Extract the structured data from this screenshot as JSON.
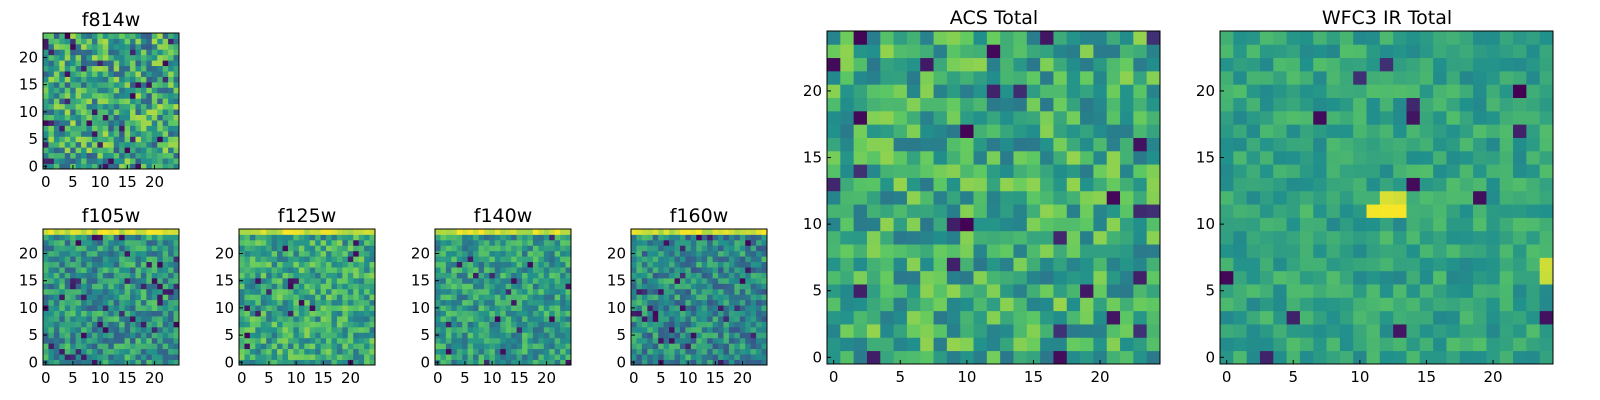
{
  "colors": {
    "cmap": [
      "#440154",
      "#3b528b",
      "#21918c",
      "#5ec962",
      "#fde725"
    ]
  },
  "chart_data": [
    {
      "id": "f814w",
      "type": "heatmap",
      "title": "f814w",
      "size": 25,
      "xticks": [
        0,
        5,
        10,
        15,
        20
      ],
      "yticks": [
        0,
        5,
        10,
        15,
        20
      ],
      "xlim": [
        -0.5,
        24.5
      ],
      "ylim": [
        -0.5,
        24.5
      ],
      "seed": 11,
      "mean": 0.58,
      "spread": 0.3,
      "lo_chance": 0.05,
      "hot_rows": [],
      "hot_spots": []
    },
    {
      "id": "f105w",
      "type": "heatmap",
      "title": "f105w",
      "size": 25,
      "xticks": [
        0,
        5,
        10,
        15,
        20
      ],
      "yticks": [
        0,
        5,
        10,
        15,
        20
      ],
      "xlim": [
        -0.5,
        24.5
      ],
      "ylim": [
        -0.5,
        24.5
      ],
      "seed": 23,
      "mean": 0.52,
      "spread": 0.22,
      "lo_chance": 0.05,
      "hot_rows": [
        24
      ],
      "hot_spots": []
    },
    {
      "id": "f125w",
      "type": "heatmap",
      "title": "f125w",
      "size": 25,
      "xticks": [
        0,
        5,
        10,
        15,
        20
      ],
      "yticks": [
        0,
        5,
        10,
        15,
        20
      ],
      "xlim": [
        -0.5,
        24.5
      ],
      "ylim": [
        -0.5,
        24.5
      ],
      "seed": 37,
      "mean": 0.6,
      "spread": 0.22,
      "lo_chance": 0.03,
      "hot_rows": [
        24
      ],
      "hot_spots": []
    },
    {
      "id": "f140w",
      "type": "heatmap",
      "title": "f140w",
      "size": 25,
      "xticks": [
        0,
        5,
        10,
        15,
        20
      ],
      "yticks": [
        0,
        5,
        10,
        15,
        20
      ],
      "xlim": [
        -0.5,
        24.5
      ],
      "ylim": [
        -0.5,
        24.5
      ],
      "seed": 41,
      "mean": 0.55,
      "spread": 0.2,
      "lo_chance": 0.03,
      "hot_rows": [
        24
      ],
      "hot_spots": []
    },
    {
      "id": "f160w",
      "type": "heatmap",
      "title": "f160w",
      "size": 25,
      "xticks": [
        0,
        5,
        10,
        15,
        20
      ],
      "yticks": [
        0,
        5,
        10,
        15,
        20
      ],
      "xlim": [
        -0.5,
        24.5
      ],
      "ylim": [
        -0.5,
        24.5
      ],
      "seed": 53,
      "mean": 0.48,
      "spread": 0.22,
      "lo_chance": 0.06,
      "hot_rows": [
        24
      ],
      "hot_spots": []
    },
    {
      "id": "acs",
      "type": "heatmap",
      "title": "ACS Total",
      "size": 25,
      "xticks": [
        0,
        5,
        10,
        15,
        20
      ],
      "yticks": [
        0,
        5,
        10,
        15,
        20
      ],
      "xlim": [
        -0.5,
        24.5
      ],
      "ylim": [
        -0.5,
        24.5
      ],
      "seed": 67,
      "mean": 0.62,
      "spread": 0.22,
      "lo_chance": 0.04,
      "hot_rows": [],
      "hot_spots": []
    },
    {
      "id": "wfc3",
      "type": "heatmap",
      "title": "WFC3 IR Total",
      "size": 25,
      "xticks": [
        0,
        5,
        10,
        15,
        20
      ],
      "yticks": [
        0,
        5,
        10,
        15,
        20
      ],
      "xlim": [
        -0.5,
        24.5
      ],
      "ylim": [
        -0.5,
        24.5
      ],
      "seed": 79,
      "mean": 0.58,
      "spread": 0.12,
      "lo_chance": 0.03,
      "hot_rows": [],
      "hot_spots": [
        [
          12,
          11
        ],
        [
          13,
          11
        ],
        [
          12,
          12
        ],
        [
          13,
          12
        ],
        [
          11,
          11
        ],
        [
          24,
          7
        ],
        [
          24,
          6
        ]
      ]
    }
  ]
}
